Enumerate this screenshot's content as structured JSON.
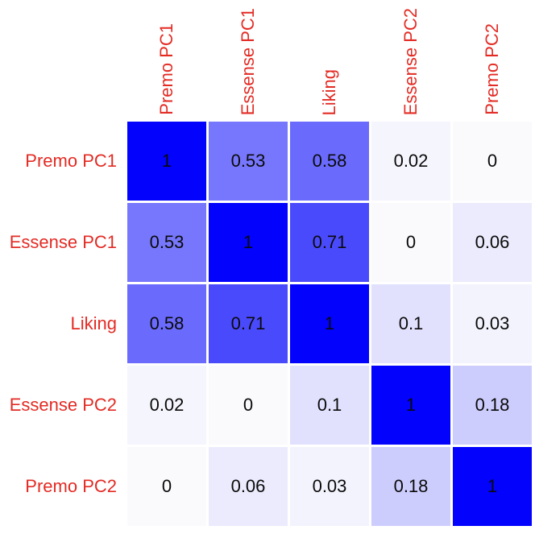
{
  "figure": {
    "background": "#ffffff"
  },
  "chart_data": {
    "type": "heatmap",
    "subtype": "correlation-matrix",
    "title": "",
    "labels": [
      "Premo PC1",
      "Essense PC1",
      "Liking",
      "Essense PC2",
      "Premo PC2"
    ],
    "matrix": [
      [
        1,
        0.53,
        0.58,
        0.02,
        0
      ],
      [
        0.53,
        1,
        0.71,
        0,
        0.06
      ],
      [
        0.58,
        0.71,
        1,
        0.1,
        0.03
      ],
      [
        0.02,
        0,
        0.1,
        1,
        0.18
      ],
      [
        0,
        0.06,
        0.03,
        0.18,
        1
      ]
    ],
    "value_range": [
      0,
      1
    ],
    "colormap": {
      "low_rgb": [
        250,
        250,
        253
      ],
      "high_rgb": [
        2,
        2,
        253
      ]
    },
    "label_color": "#e32b24",
    "value_text_color": "#0a0a0a",
    "grid_gap_color": "#ffffff",
    "legend": "none"
  }
}
